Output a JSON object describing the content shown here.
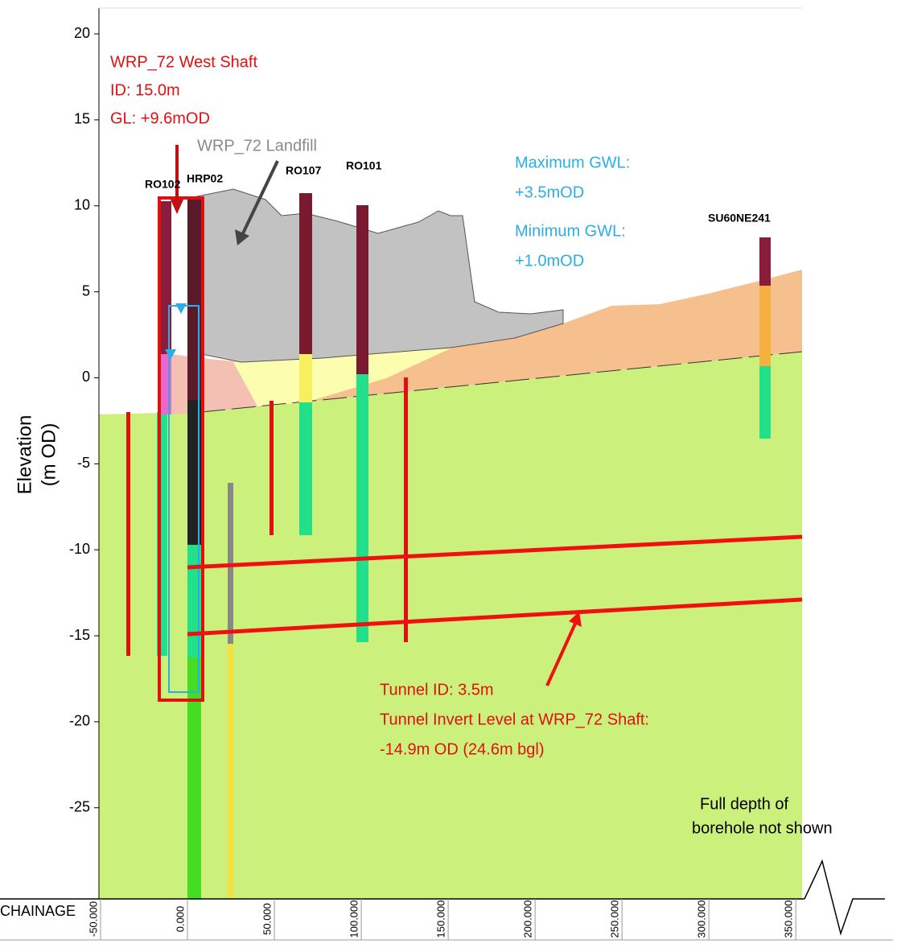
{
  "chart_data": {
    "type": "cross-section",
    "ylabel": [
      "Elevation",
      "(m OD)"
    ],
    "xlabel": "CHAINAGE",
    "ylim": [
      -30.3,
      21.5
    ],
    "yticks": [
      20,
      15,
      10,
      5,
      0,
      -5,
      -10,
      -15,
      -20,
      -25
    ],
    "xlim": [
      -50,
      355
    ],
    "xticks": [
      {
        "value": -50,
        "label": "-50.000"
      },
      {
        "value": 0,
        "label": "0.000"
      },
      {
        "value": 50,
        "label": "50.000"
      },
      {
        "value": 100,
        "label": "100.000"
      },
      {
        "value": 150,
        "label": "150.000"
      },
      {
        "value": 200,
        "label": "200.000"
      },
      {
        "value": 250,
        "label": "250.000"
      },
      {
        "value": 300,
        "label": "300.000"
      },
      {
        "value": 350,
        "label": "350.000"
      }
    ],
    "boreholes": [
      "RO102",
      "HRP02",
      "RO107",
      "RO101",
      "SU60NE241"
    ],
    "shaft": [
      "WRP_72 West Shaft",
      "ID: 15.0m",
      "GL: +9.6mOD"
    ],
    "landfill": "WRP_72 Landfill",
    "gwl": [
      "Maximum GWL:",
      "+3.5mOD",
      "Minimum GWL:",
      "+1.0mOD"
    ],
    "tunnel": [
      "Tunnel ID: 3.5m",
      "Tunnel Invert Level at WRP_72 Shaft:",
      "-14.9m OD (24.6m bgl)"
    ],
    "note": [
      "Full depth of",
      "borehole not shown"
    ]
  }
}
